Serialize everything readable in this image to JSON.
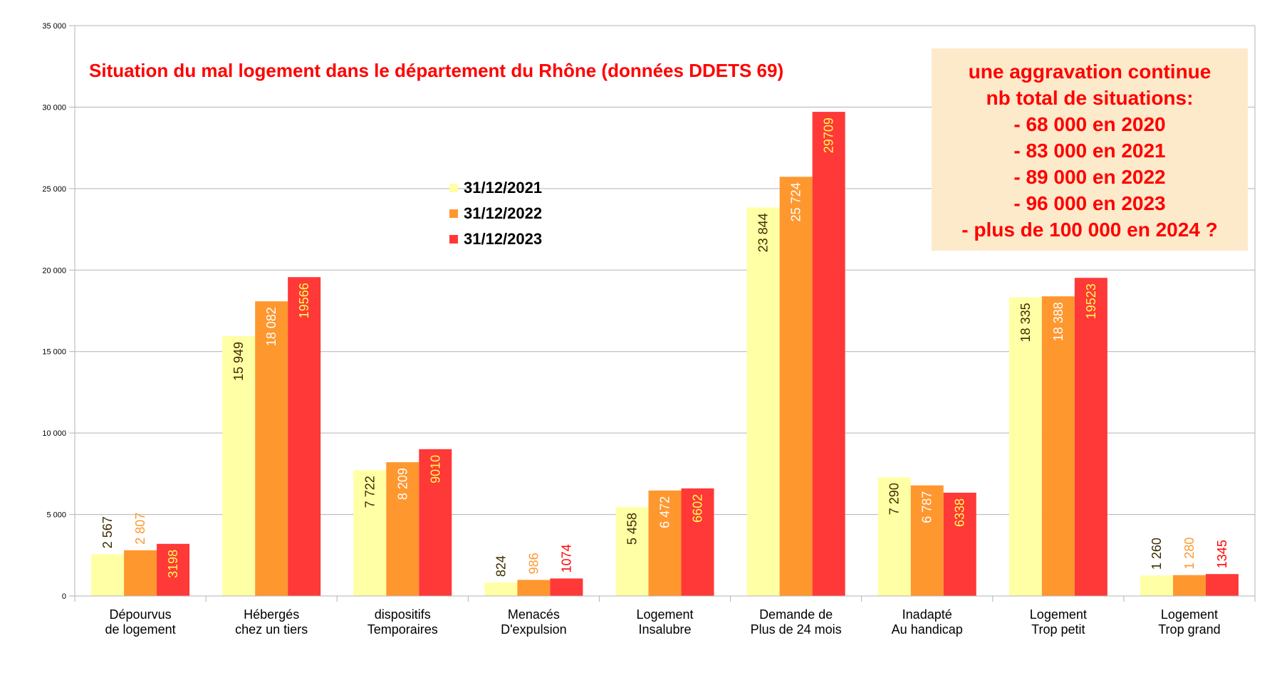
{
  "chart_data": {
    "type": "bar",
    "title": "Situation du mal logement dans le département du Rhône (données DDETS 69)",
    "xlabel": "",
    "ylabel": "",
    "ylim": [
      0,
      35000
    ],
    "yticks": [
      "0",
      "5 000",
      "10 000",
      "15 000",
      "20 000",
      "25 000",
      "30 000",
      "35 000"
    ],
    "ytick_values": [
      0,
      5000,
      10000,
      15000,
      20000,
      25000,
      30000,
      35000
    ],
    "grid": true,
    "categories": [
      [
        "Dépourvus",
        "de logement"
      ],
      [
        "Hébergés",
        "chez un tiers"
      ],
      [
        "dispositifs",
        "Temporaires"
      ],
      [
        "Menacés",
        "D'expulsion"
      ],
      [
        "Logement",
        "Insalubre"
      ],
      [
        "Demande de",
        "Plus de 24 mois"
      ],
      [
        "Inadapté",
        "Au handicap"
      ],
      [
        "Logement",
        "Trop petit"
      ],
      [
        "Logement",
        "Trop grand"
      ]
    ],
    "series": [
      {
        "name": "31/12/2021",
        "color": "#ffffa6",
        "values": [
          2567,
          15949,
          7722,
          824,
          5458,
          23844,
          7290,
          18335,
          1260
        ],
        "labels": [
          "2 567",
          "15 949",
          "7 722",
          "824",
          "5 458",
          "23 844",
          "7 290",
          "18 335",
          "1 260"
        ]
      },
      {
        "name": "31/12/2022",
        "color": "#ff972f",
        "values": [
          2807,
          18082,
          8209,
          986,
          6472,
          25724,
          6787,
          18388,
          1280
        ],
        "labels": [
          "2 807",
          "18 082",
          "8 209",
          "986",
          "6 472",
          "25 724",
          "6 787",
          "18 388",
          "1 280"
        ]
      },
      {
        "name": "31/12/2023",
        "color": "#ff3838",
        "values": [
          3198,
          19566,
          9010,
          1074,
          6602,
          29709,
          6338,
          19523,
          1345
        ],
        "labels": [
          "3198",
          "19566",
          "9010",
          "1074",
          "6602",
          "29709",
          "6338",
          "19523",
          "1345"
        ]
      }
    ],
    "legend": {
      "position": "center-top"
    },
    "annotation": {
      "lines": [
        "une aggravation continue",
        "nb total de situations:",
        "- 68 000 en 2020",
        "- 83 000 en 2021",
        "- 89 000 en 2022",
        "- 96 000 en 2023",
        "- plus de 100 000 en 2024 ?"
      ],
      "background": "#fdeacb",
      "color": "#ff0000"
    },
    "title_color": "#ff0000"
  }
}
